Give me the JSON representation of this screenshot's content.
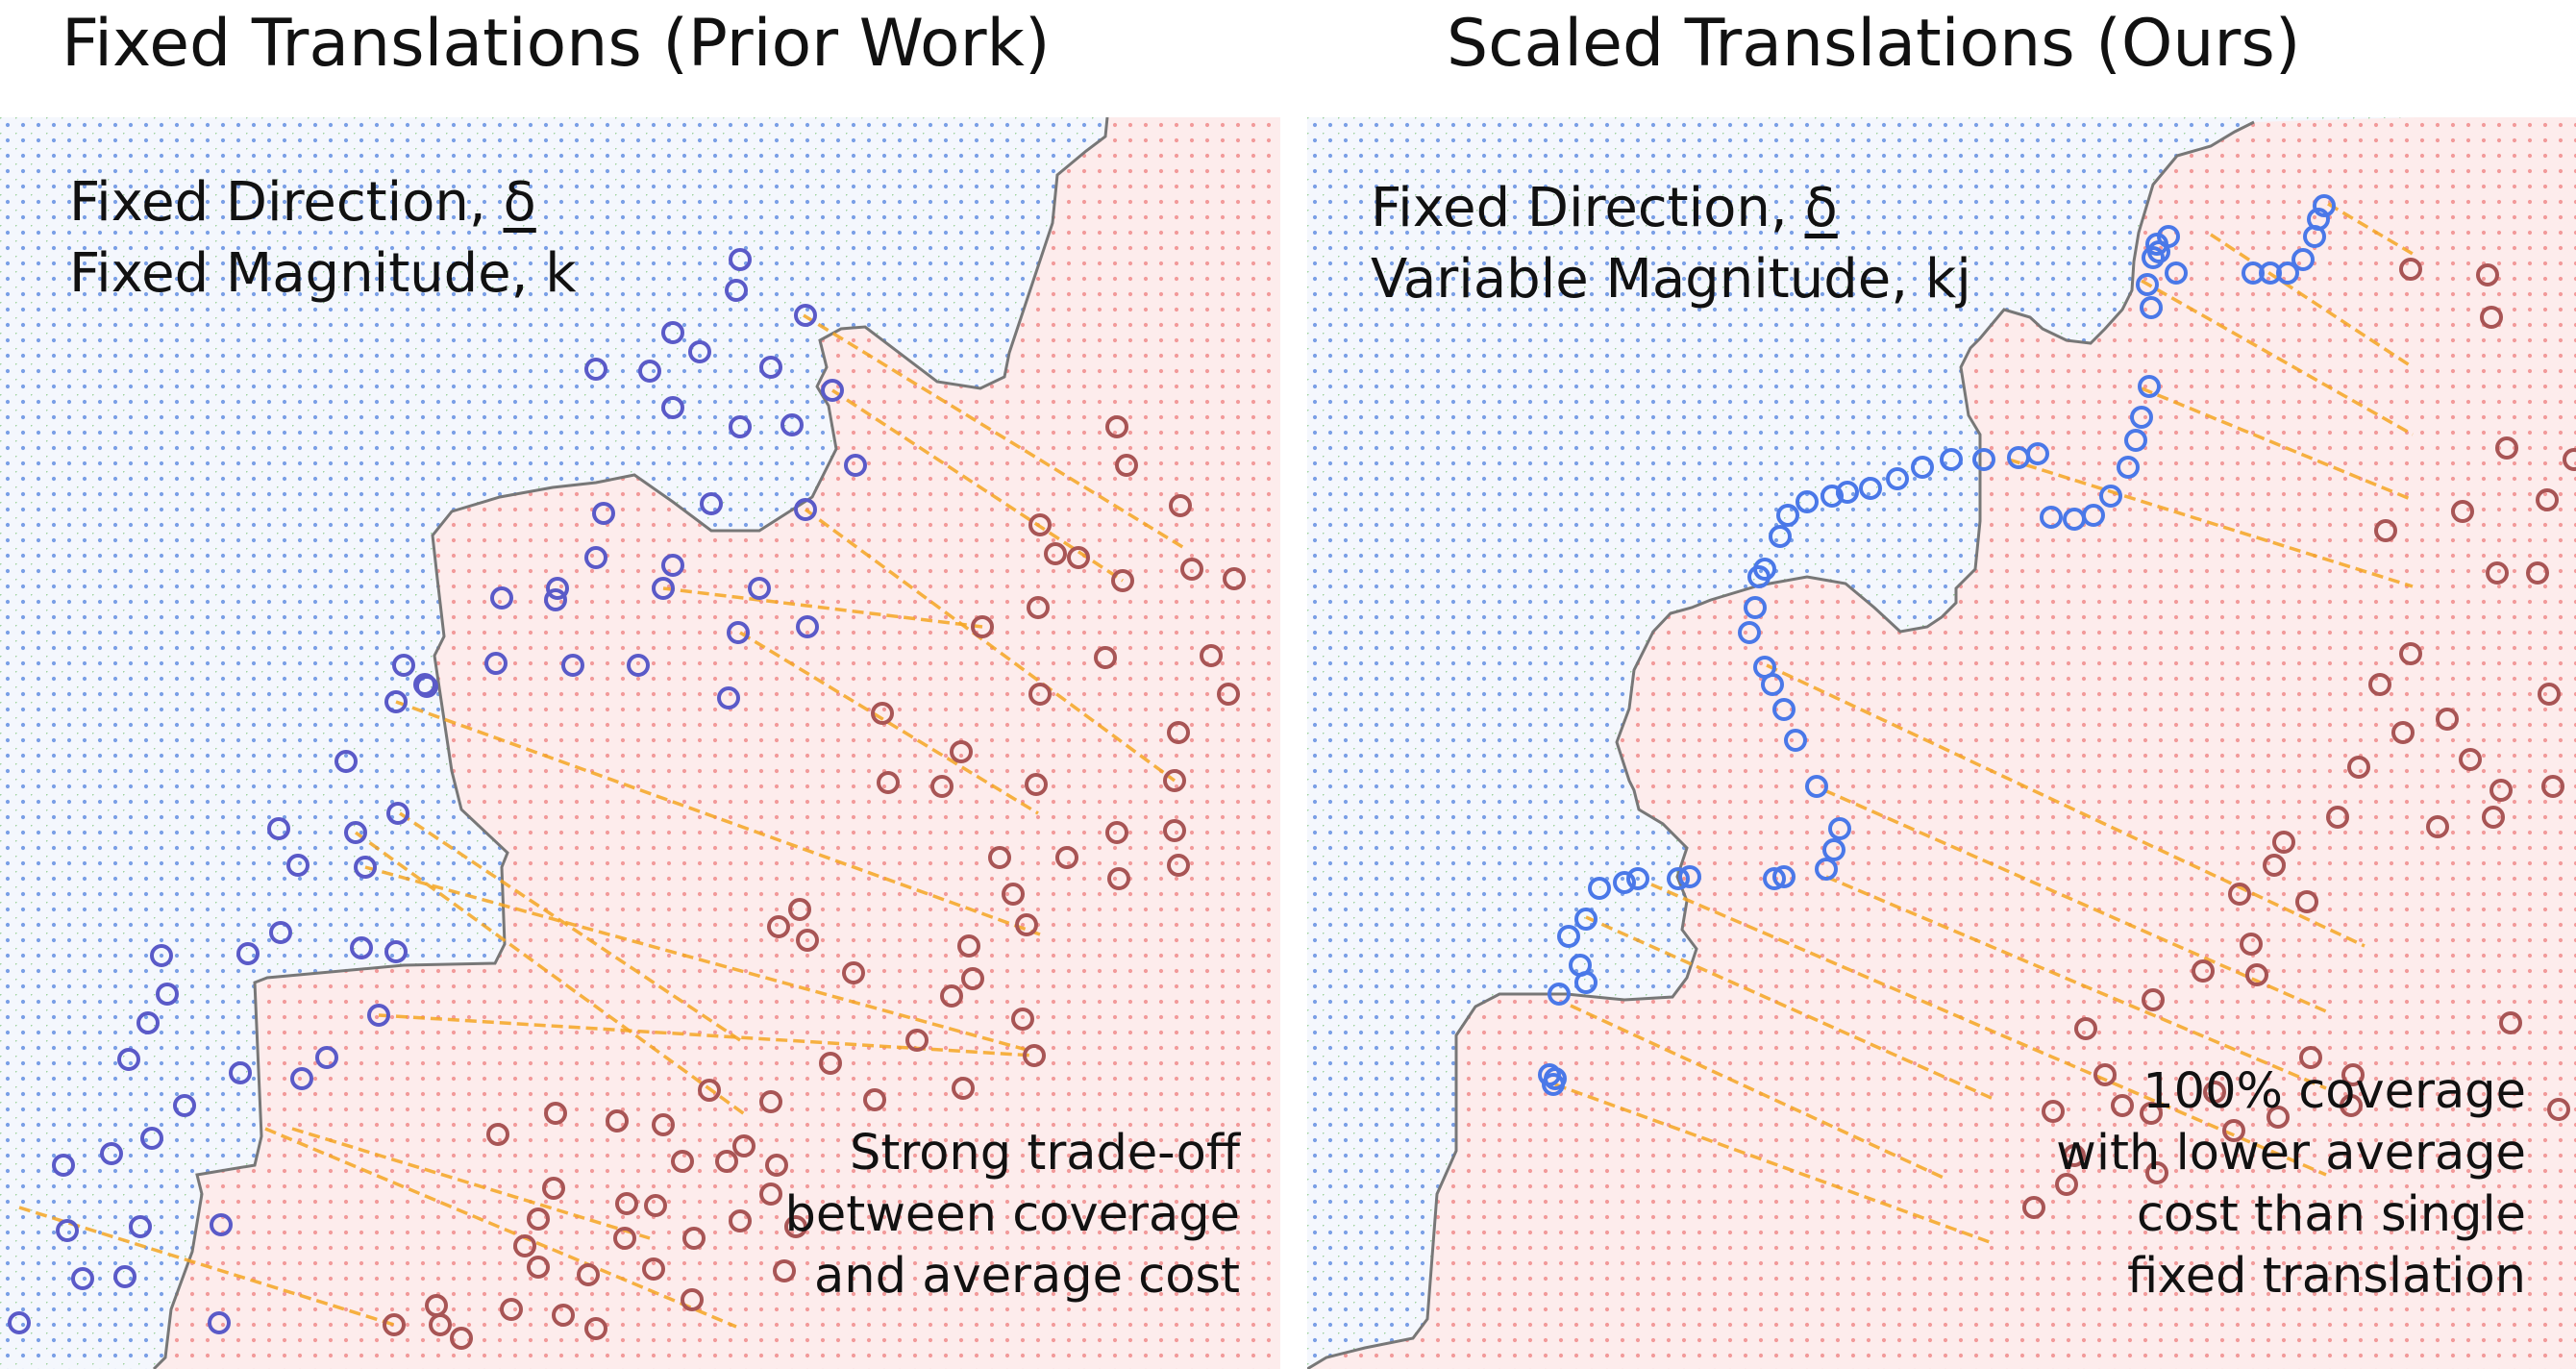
{
  "left_panel": {
    "title": "Fixed Translations (Prior Work)",
    "direction_label": "Fixed Direction,",
    "direction_symbol": "δ",
    "magnitude_label": "Fixed Magnitude,",
    "magnitude_symbol": "k",
    "note_lines": [
      "Strong trade-off",
      "between coverage",
      "and average cost"
    ]
  },
  "right_panel": {
    "title": "Scaled Translations (Ours)",
    "direction_label": "Fixed Direction,",
    "direction_symbol": "δ",
    "magnitude_label": "Variable Magnitude,",
    "magnitude_symbol": "kj",
    "note_lines": [
      "100% coverage",
      "with lower average",
      "cost than single",
      "fixed translation"
    ]
  },
  "colors": {
    "blue_region": "#7a9fe6",
    "red_region": "#f29a9a",
    "original_points": "#5a5ac8",
    "translated_points": "#a85555",
    "boundary_points": "#4a78e8",
    "translation_lines": "#f5a623",
    "boundary": "#777777"
  }
}
